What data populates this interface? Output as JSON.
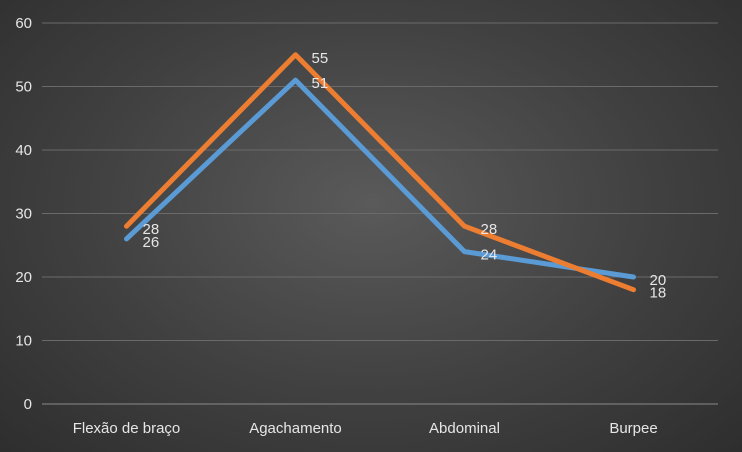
{
  "chart_data": {
    "type": "line",
    "categories": [
      "Flexão de braço",
      "Agachamento",
      "Abdominal",
      "Burpee"
    ],
    "series": [
      {
        "values": [
          26,
          51,
          24,
          20
        ],
        "color": "#5b9bd5"
      },
      {
        "values": [
          28,
          55,
          28,
          18
        ],
        "color": "#ed7d31"
      }
    ],
    "yticks": [
      "0",
      "10",
      "20",
      "30",
      "40",
      "50",
      "60"
    ],
    "ylim": [
      0,
      60
    ],
    "grid": true,
    "legend": "none"
  }
}
